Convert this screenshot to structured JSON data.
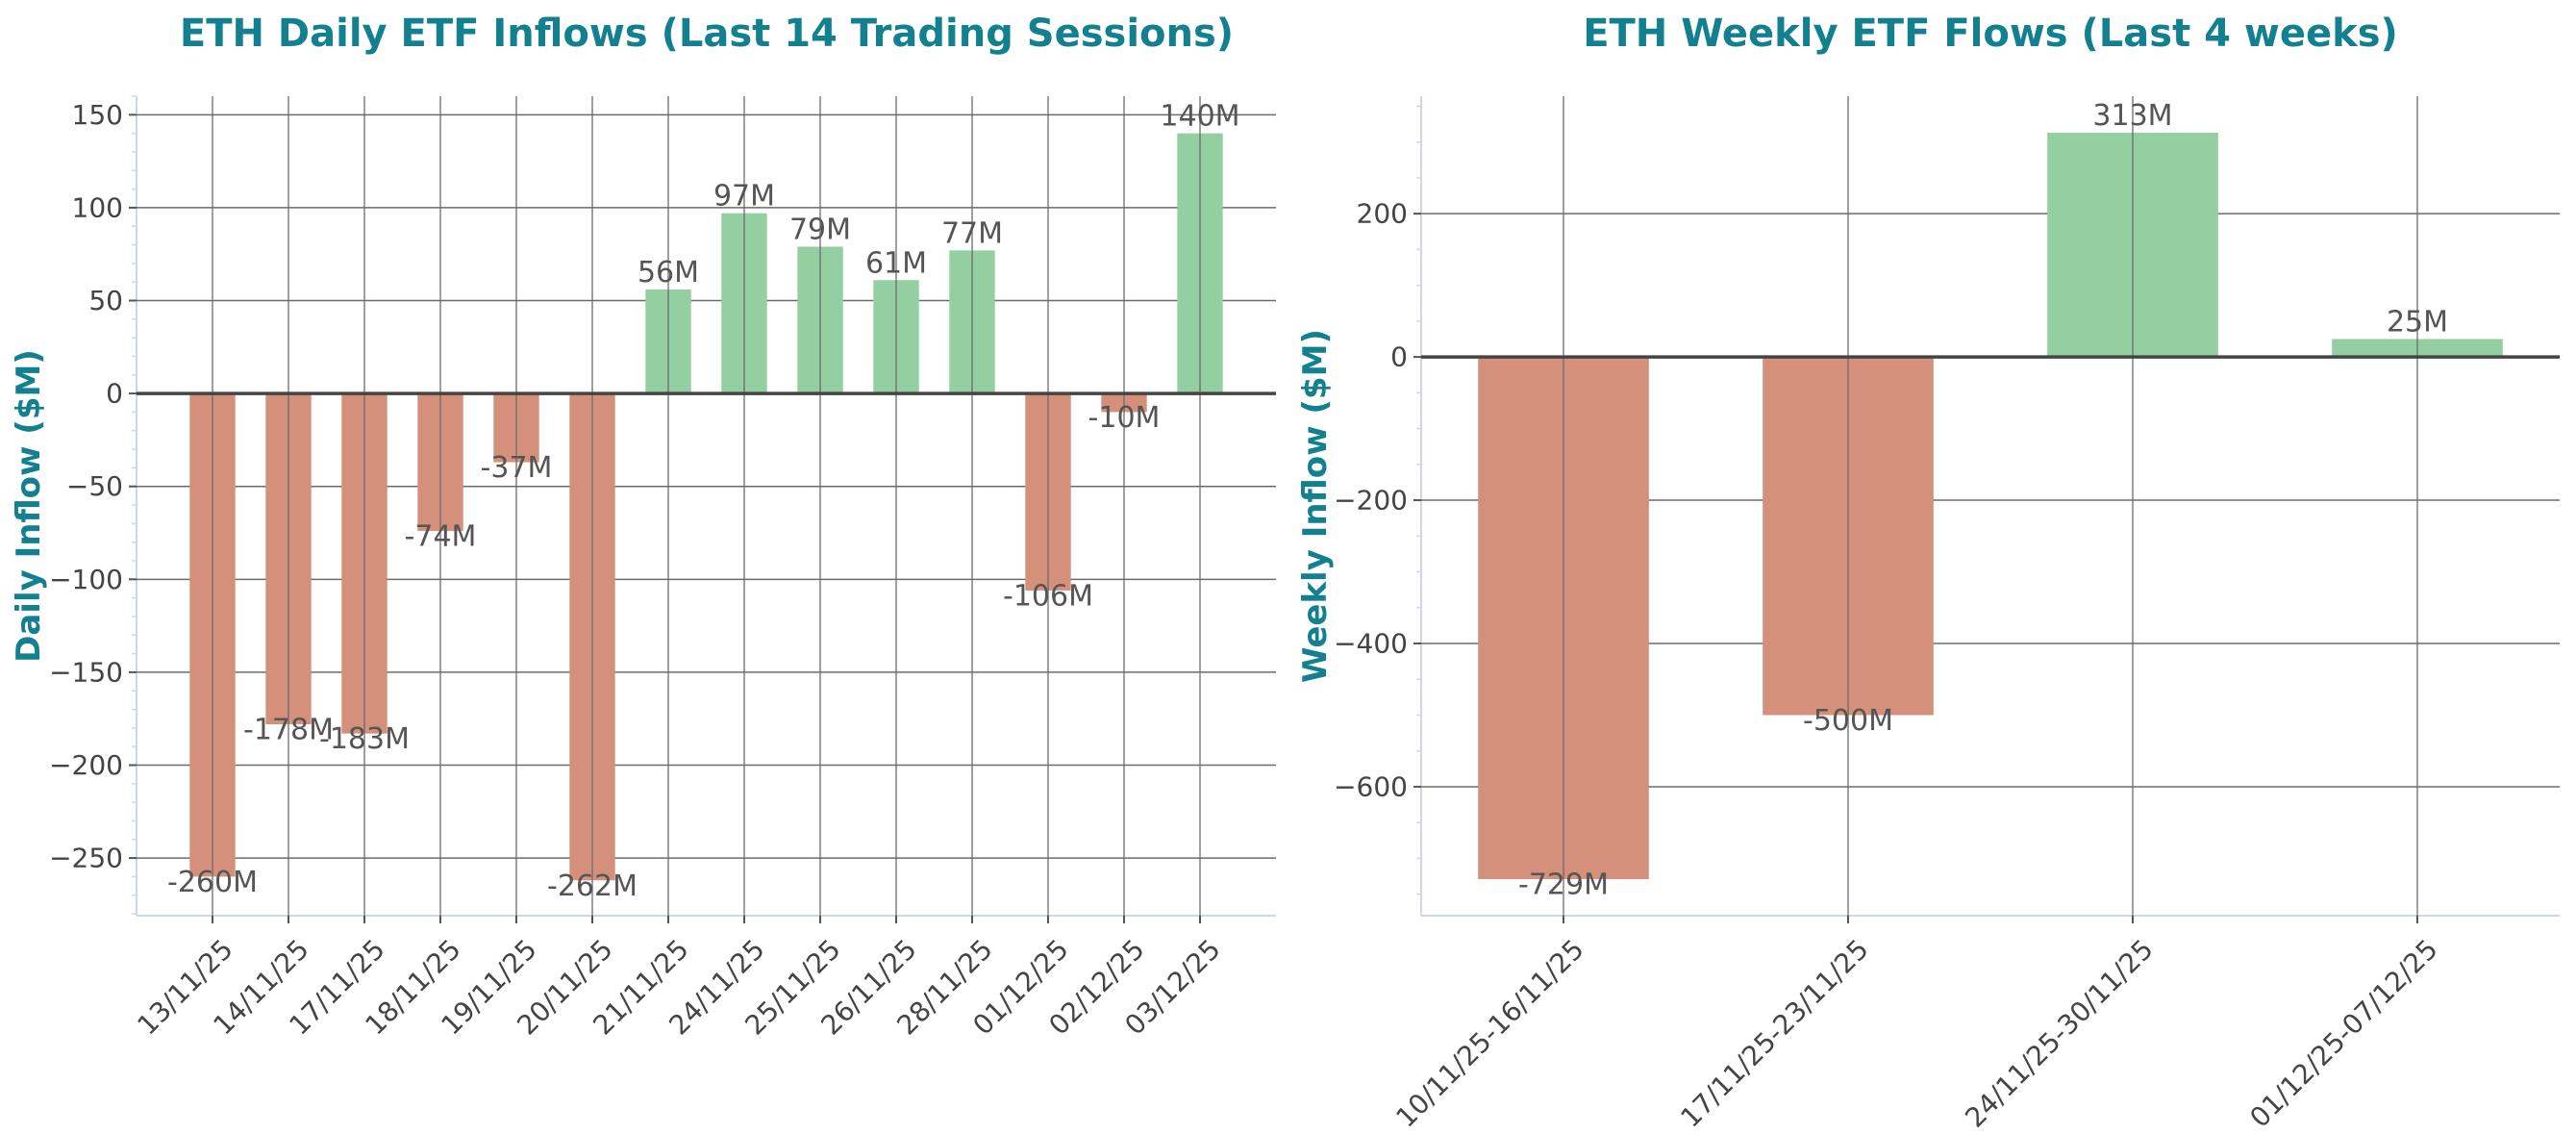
{
  "chart_data": [
    {
      "type": "bar",
      "title": "ETH Daily ETF Inflows (Last 14 Trading Sessions)",
      "xlabel": "",
      "ylabel": "Daily Inflow ($M)",
      "categories": [
        "13/11/25",
        "14/11/25",
        "17/11/25",
        "18/11/25",
        "19/11/25",
        "20/11/25",
        "21/11/25",
        "24/11/25",
        "25/11/25",
        "26/11/25",
        "28/11/25",
        "01/12/25",
        "02/12/25",
        "03/12/25"
      ],
      "values": [
        -260,
        -178,
        -183,
        -74,
        -37,
        -262,
        56,
        97,
        79,
        61,
        77,
        -106,
        -10,
        140
      ],
      "data_labels": [
        "-260M",
        "-178M",
        "-183M",
        "-74M",
        "-37M",
        "-262M",
        "56M",
        "97M",
        "79M",
        "61M",
        "77M",
        "-106M",
        "-10M",
        "140M"
      ],
      "ylim": [
        -281,
        160
      ],
      "yticks": [
        -250,
        -200,
        -150,
        -100,
        -50,
        0,
        50,
        100,
        150
      ],
      "grid": true,
      "colors": {
        "positive": "#94cfa1",
        "negative": "#d4907a",
        "title": "#13808f"
      }
    },
    {
      "type": "bar",
      "title": "ETH Weekly ETF Flows (Last 4 weeks)",
      "xlabel": "",
      "ylabel": "Weekly Inflow ($M)",
      "categories": [
        "10/11/25-16/11/25",
        "17/11/25-23/11/25",
        "24/11/25-30/11/25",
        "01/12/25-07/12/25"
      ],
      "values": [
        -729,
        -500,
        313,
        25
      ],
      "data_labels": [
        "-729M",
        "-500M",
        "313M",
        "25M"
      ],
      "ylim": [
        -780,
        364
      ],
      "yticks": [
        -600,
        -400,
        -200,
        0,
        200
      ],
      "grid": true,
      "colors": {
        "positive": "#94cfa1",
        "negative": "#d4907a",
        "title": "#13808f"
      }
    }
  ]
}
